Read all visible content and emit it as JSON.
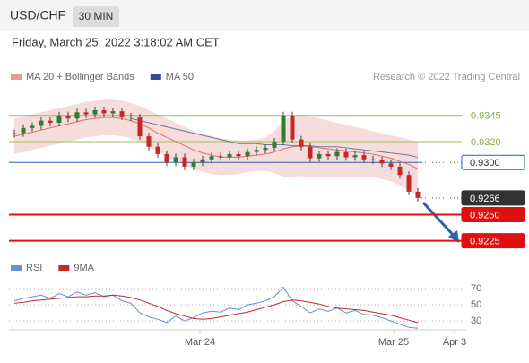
{
  "header": {
    "symbol": "USD/CHF",
    "interval": "30 MIN",
    "datetime": "Friday, March 25, 2022 3:18:02 AM CET",
    "credit": "Research © 2022 Trading Central"
  },
  "chart_data": [
    {
      "type": "candlestick",
      "legend": [
        {
          "name": "MA 20 + Bollinger Bands",
          "color": "#e89a9a"
        },
        {
          "name": "MA 50",
          "color": "#2f4f8f"
        }
      ],
      "up_color": "#2e7d32",
      "down_color": "#c62828",
      "close": [
        0.9328,
        0.9333,
        0.9335,
        0.934,
        0.9338,
        0.9345,
        0.9342,
        0.9348,
        0.9346,
        0.935,
        0.9347,
        0.9349,
        0.9344,
        0.9343,
        0.9325,
        0.9315,
        0.9308,
        0.93,
        0.9305,
        0.9296,
        0.93,
        0.9303,
        0.9306,
        0.9305,
        0.9308,
        0.9306,
        0.931,
        0.9312,
        0.9314,
        0.932,
        0.9345,
        0.9322,
        0.9315,
        0.9304,
        0.9308,
        0.9306,
        0.931,
        0.9305,
        0.9307,
        0.9303,
        0.9302,
        0.9299,
        0.9296,
        0.9288,
        0.9272,
        0.9266
      ],
      "ma20": [
        0.9325,
        0.9327,
        0.9329,
        0.9331,
        0.9333,
        0.9335,
        0.9337,
        0.9339,
        0.9341,
        0.9342,
        0.9343,
        0.9343,
        0.9342,
        0.934,
        0.9337,
        0.9333,
        0.9328,
        0.9324,
        0.932,
        0.9316,
        0.9312,
        0.9309,
        0.9307,
        0.9305,
        0.9305,
        0.9305,
        0.9306,
        0.9307,
        0.9308,
        0.931,
        0.9313,
        0.9315,
        0.9316,
        0.9315,
        0.9314,
        0.9313,
        0.9312,
        0.9311,
        0.931,
        0.9309,
        0.9308,
        0.9306,
        0.9304,
        0.9301,
        0.9298,
        0.9294
      ],
      "bb_upper": [
        0.9342,
        0.9344,
        0.9346,
        0.9348,
        0.935,
        0.9352,
        0.9354,
        0.9356,
        0.9358,
        0.9359,
        0.936,
        0.936,
        0.9359,
        0.9357,
        0.9354,
        0.935,
        0.9346,
        0.9342,
        0.9338,
        0.9334,
        0.933,
        0.9327,
        0.9325,
        0.9323,
        0.9322,
        0.9321,
        0.9321,
        0.9322,
        0.9324,
        0.933,
        0.934,
        0.9344,
        0.9345,
        0.9344,
        0.9342,
        0.934,
        0.9338,
        0.9336,
        0.9334,
        0.9332,
        0.933,
        0.9328,
        0.9326,
        0.9324,
        0.9322,
        0.932
      ],
      "bb_lower": [
        0.9308,
        0.931,
        0.9312,
        0.9314,
        0.9316,
        0.9318,
        0.932,
        0.9322,
        0.9324,
        0.9325,
        0.9326,
        0.9326,
        0.9325,
        0.9323,
        0.932,
        0.9316,
        0.931,
        0.9306,
        0.9302,
        0.9298,
        0.9294,
        0.9291,
        0.9289,
        0.9288,
        0.9288,
        0.9289,
        0.9291,
        0.9292,
        0.9292,
        0.929,
        0.9286,
        0.9286,
        0.9287,
        0.9286,
        0.9286,
        0.9286,
        0.9286,
        0.9286,
        0.9286,
        0.9286,
        0.9286,
        0.9284,
        0.9282,
        0.9278,
        0.9274,
        0.9268
      ],
      "ma50": [
        null,
        null,
        null,
        null,
        null,
        null,
        null,
        null,
        null,
        null,
        null,
        null,
        null,
        0.9342,
        0.934,
        0.9338,
        0.9336,
        0.9334,
        0.9332,
        0.933,
        0.9328,
        0.9326,
        0.9324,
        0.9322,
        0.932,
        0.9318,
        0.9318,
        0.9318,
        0.9317,
        0.9317,
        0.9317,
        0.9316,
        0.9316,
        0.9316,
        0.9315,
        0.9315,
        0.9315,
        0.9314,
        0.9313,
        0.9312,
        0.9311,
        0.931,
        0.9309,
        0.9308,
        0.9307,
        0.9305
      ],
      "ylim": [
        0.9211,
        0.9374
      ],
      "xlim": [
        -0.6,
        50.4
      ],
      "levels": [
        {
          "value": 0.9345,
          "color": "#9cbf5a",
          "style": "plain"
        },
        {
          "value": 0.932,
          "label": "0.9320",
          "color": "#9cbf5a",
          "style": "plain"
        },
        {
          "value": 0.93,
          "label": "0.9300",
          "color": "#2e5fb0",
          "style": "outline"
        },
        {
          "value": 0.9266,
          "color": "#333333",
          "style": "current"
        },
        {
          "value": 0.925,
          "label": "0.9250",
          "color": "#e01010",
          "style": "solid"
        },
        {
          "value": 0.9225,
          "color": "#e01010",
          "style": "solid"
        }
      ]
    },
    {
      "type": "line",
      "series": [
        {
          "name": "RSI",
          "color": "#6a8fd8",
          "values": [
            55,
            58,
            60,
            62,
            58,
            64,
            60,
            66,
            62,
            65,
            60,
            62,
            55,
            52,
            40,
            35,
            32,
            28,
            36,
            30,
            34,
            40,
            42,
            41,
            46,
            44,
            50,
            52,
            55,
            60,
            72,
            55,
            48,
            40,
            45,
            42,
            46,
            40,
            43,
            38,
            37,
            34,
            30,
            26,
            22,
            21
          ]
        },
        {
          "name": "9MA",
          "color": "#c62828",
          "values": [
            52,
            53,
            55,
            56,
            57,
            58,
            59,
            60,
            60,
            61,
            61,
            62,
            61,
            59,
            56,
            52,
            48,
            43,
            39,
            36,
            33,
            32,
            33,
            35,
            37,
            39,
            41,
            44,
            47,
            50,
            54,
            56,
            55,
            53,
            51,
            48,
            46,
            45,
            44,
            43,
            41,
            39,
            37,
            34,
            31,
            28
          ]
        }
      ],
      "ylim": [
        19,
        99
      ],
      "yticks": [
        70,
        50,
        30
      ],
      "xlim": [
        -0.6,
        50.4
      ],
      "xticks": [
        {
          "value": 20.7,
          "label": "Mar 24"
        },
        {
          "value": 42.3,
          "label": "Mar 25"
        },
        {
          "value": 49.1,
          "label": "Apr 3"
        }
      ]
    }
  ]
}
